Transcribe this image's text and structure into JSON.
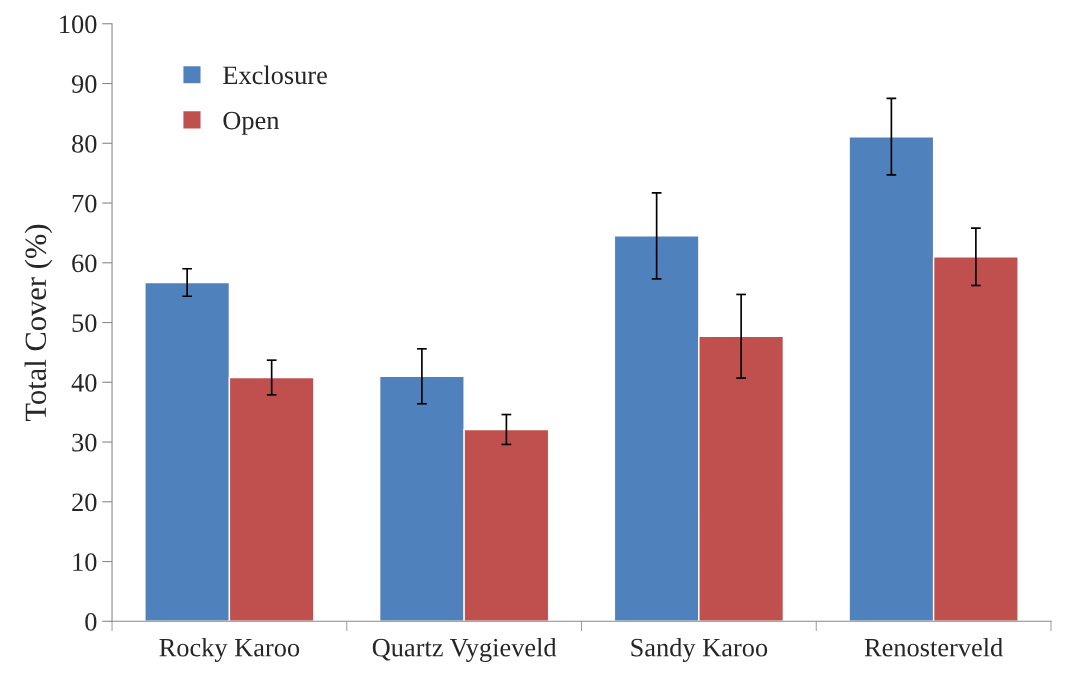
{
  "chart_data": {
    "type": "bar",
    "ylabel": "Total Cover (%)",
    "categories": [
      "Rocky Karoo",
      "Quartz Vygieveld",
      "Sandy Karoo",
      "Renosterveld"
    ],
    "series": [
      {
        "name": "Exclosure",
        "color": "#4f81bd",
        "values": [
          56.7,
          41.0,
          64.5,
          81.1
        ],
        "errors": [
          2.3,
          4.6,
          7.2,
          6.4
        ]
      },
      {
        "name": "Open",
        "color": "#c0504d",
        "values": [
          40.8,
          32.1,
          47.7,
          61.0
        ],
        "errors": [
          2.9,
          2.5,
          7.0,
          4.8
        ]
      }
    ],
    "ylim": [
      0,
      100
    ],
    "yticks": [
      0,
      10,
      20,
      30,
      40,
      50,
      60,
      70,
      80,
      90,
      100
    ],
    "grid": false,
    "legend": "top left"
  }
}
